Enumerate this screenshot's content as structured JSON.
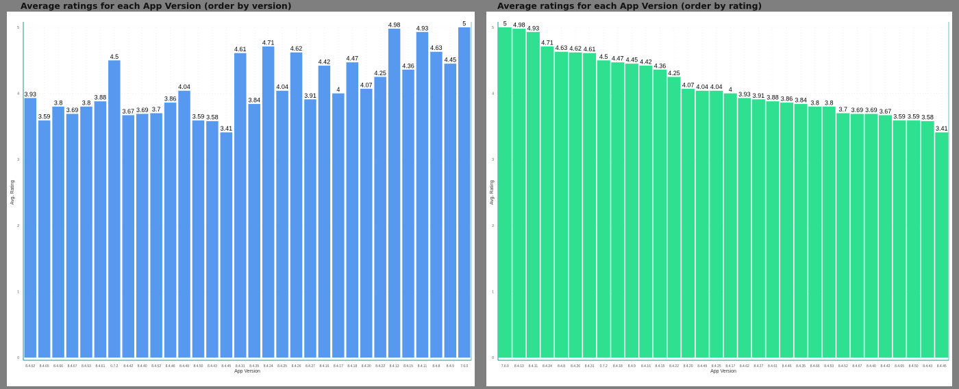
{
  "chart_data": [
    {
      "type": "bar",
      "title": "Average ratings for each App Version (order by version)",
      "xlabel": "App Version",
      "ylabel": "Avg. Rating",
      "ylim": [
        0,
        5
      ],
      "yticks": [
        "0",
        "1",
        "2",
        "3",
        "4",
        "5"
      ],
      "grid": true,
      "bar_color": "#5799ee",
      "axis_color": "#1f8f86",
      "categories": [
        "8.4.62",
        "8.4.65",
        "8.4.66",
        "8.4.67",
        "8.4.53",
        "8.4.61",
        "0.7.2",
        "8.4.42",
        "8.4.40",
        "8.4.52",
        "8.4.46",
        "8.4.49",
        "8.4.50",
        "8.4.43",
        "8.4.45",
        "8.4.31",
        "8.4.35",
        "8.4.24",
        "8.4.25",
        "8.4.26",
        "8.4.27",
        "8.4.16",
        "8.4.17",
        "8.4.18",
        "8.4.20",
        "8.4.22",
        "8.4.13",
        "8.4.15",
        "8.4.11",
        "8.4.8",
        "8.4.9",
        "7.6.0"
      ],
      "values": [
        3.93,
        3.59,
        3.8,
        3.69,
        3.8,
        3.88,
        4.5,
        3.67,
        3.69,
        3.7,
        3.86,
        4.04,
        3.59,
        3.58,
        3.41,
        4.61,
        3.84,
        4.71,
        4.04,
        4.62,
        3.91,
        4.42,
        4,
        4.47,
        4.07,
        4.25,
        4.98,
        4.36,
        4.93,
        4.63,
        4.45,
        5
      ],
      "labels": [
        "3.93",
        "3.59",
        "3.8",
        "3.69",
        "3.8",
        "3.88",
        "4.5",
        "3.67",
        "3.69",
        "3.7",
        "3.86",
        "4.04",
        "3.59",
        "3.58",
        "3.41",
        "4.61",
        "3.84",
        "4.71",
        "4.04",
        "4.62",
        "3.91",
        "4.42",
        "4",
        "4.47",
        "4.07",
        "4.25",
        "4.98",
        "4.36",
        "4.93",
        "4.63",
        "4.45",
        "5"
      ]
    },
    {
      "type": "bar",
      "title": "Average ratings for each App Version (order by rating)",
      "xlabel": "App Version",
      "ylabel": "Avg. Rating",
      "ylim": [
        0,
        5
      ],
      "yticks": [
        "0",
        "1",
        "2",
        "3",
        "4",
        "5"
      ],
      "grid": true,
      "bar_color": "#2ee08f",
      "axis_color": "#1f8f86",
      "categories": [
        "7.6.0",
        "8.4.13",
        "8.4.11",
        "8.4.24",
        "8.4.8",
        "8.4.26",
        "8.4.31",
        "0.7.2",
        "8.4.18",
        "8.4.9",
        "8.4.16",
        "8.4.15",
        "8.4.22",
        "8.4.20",
        "8.4.49",
        "8.4.25",
        "8.4.17",
        "8.4.62",
        "8.4.27",
        "8.4.61",
        "8.4.46",
        "8.4.35",
        "8.4.66",
        "8.4.53",
        "8.4.52",
        "8.4.67",
        "8.4.40",
        "8.4.42",
        "8.4.65",
        "8.4.50",
        "8.4.43",
        "8.4.45"
      ],
      "values": [
        5,
        4.98,
        4.93,
        4.71,
        4.63,
        4.62,
        4.61,
        4.5,
        4.47,
        4.45,
        4.42,
        4.36,
        4.25,
        4.07,
        4.04,
        4.04,
        4,
        3.93,
        3.91,
        3.88,
        3.86,
        3.84,
        3.8,
        3.8,
        3.7,
        3.69,
        3.69,
        3.67,
        3.59,
        3.59,
        3.58,
        3.41
      ],
      "labels": [
        "5",
        "4.98",
        "4.93",
        "4.71",
        "4.63",
        "4.62",
        "4.61",
        "4.5",
        "4.47",
        "4.45",
        "4.42",
        "4.36",
        "4.25",
        "4.07",
        "4.04",
        "4.04",
        "4",
        "3.93",
        "3.91",
        "3.88",
        "3.86",
        "3.84",
        "3.8",
        "3.8",
        "3.7",
        "3.69",
        "3.69",
        "3.67",
        "3.59",
        "3.59",
        "3.58",
        "3.41"
      ]
    }
  ]
}
